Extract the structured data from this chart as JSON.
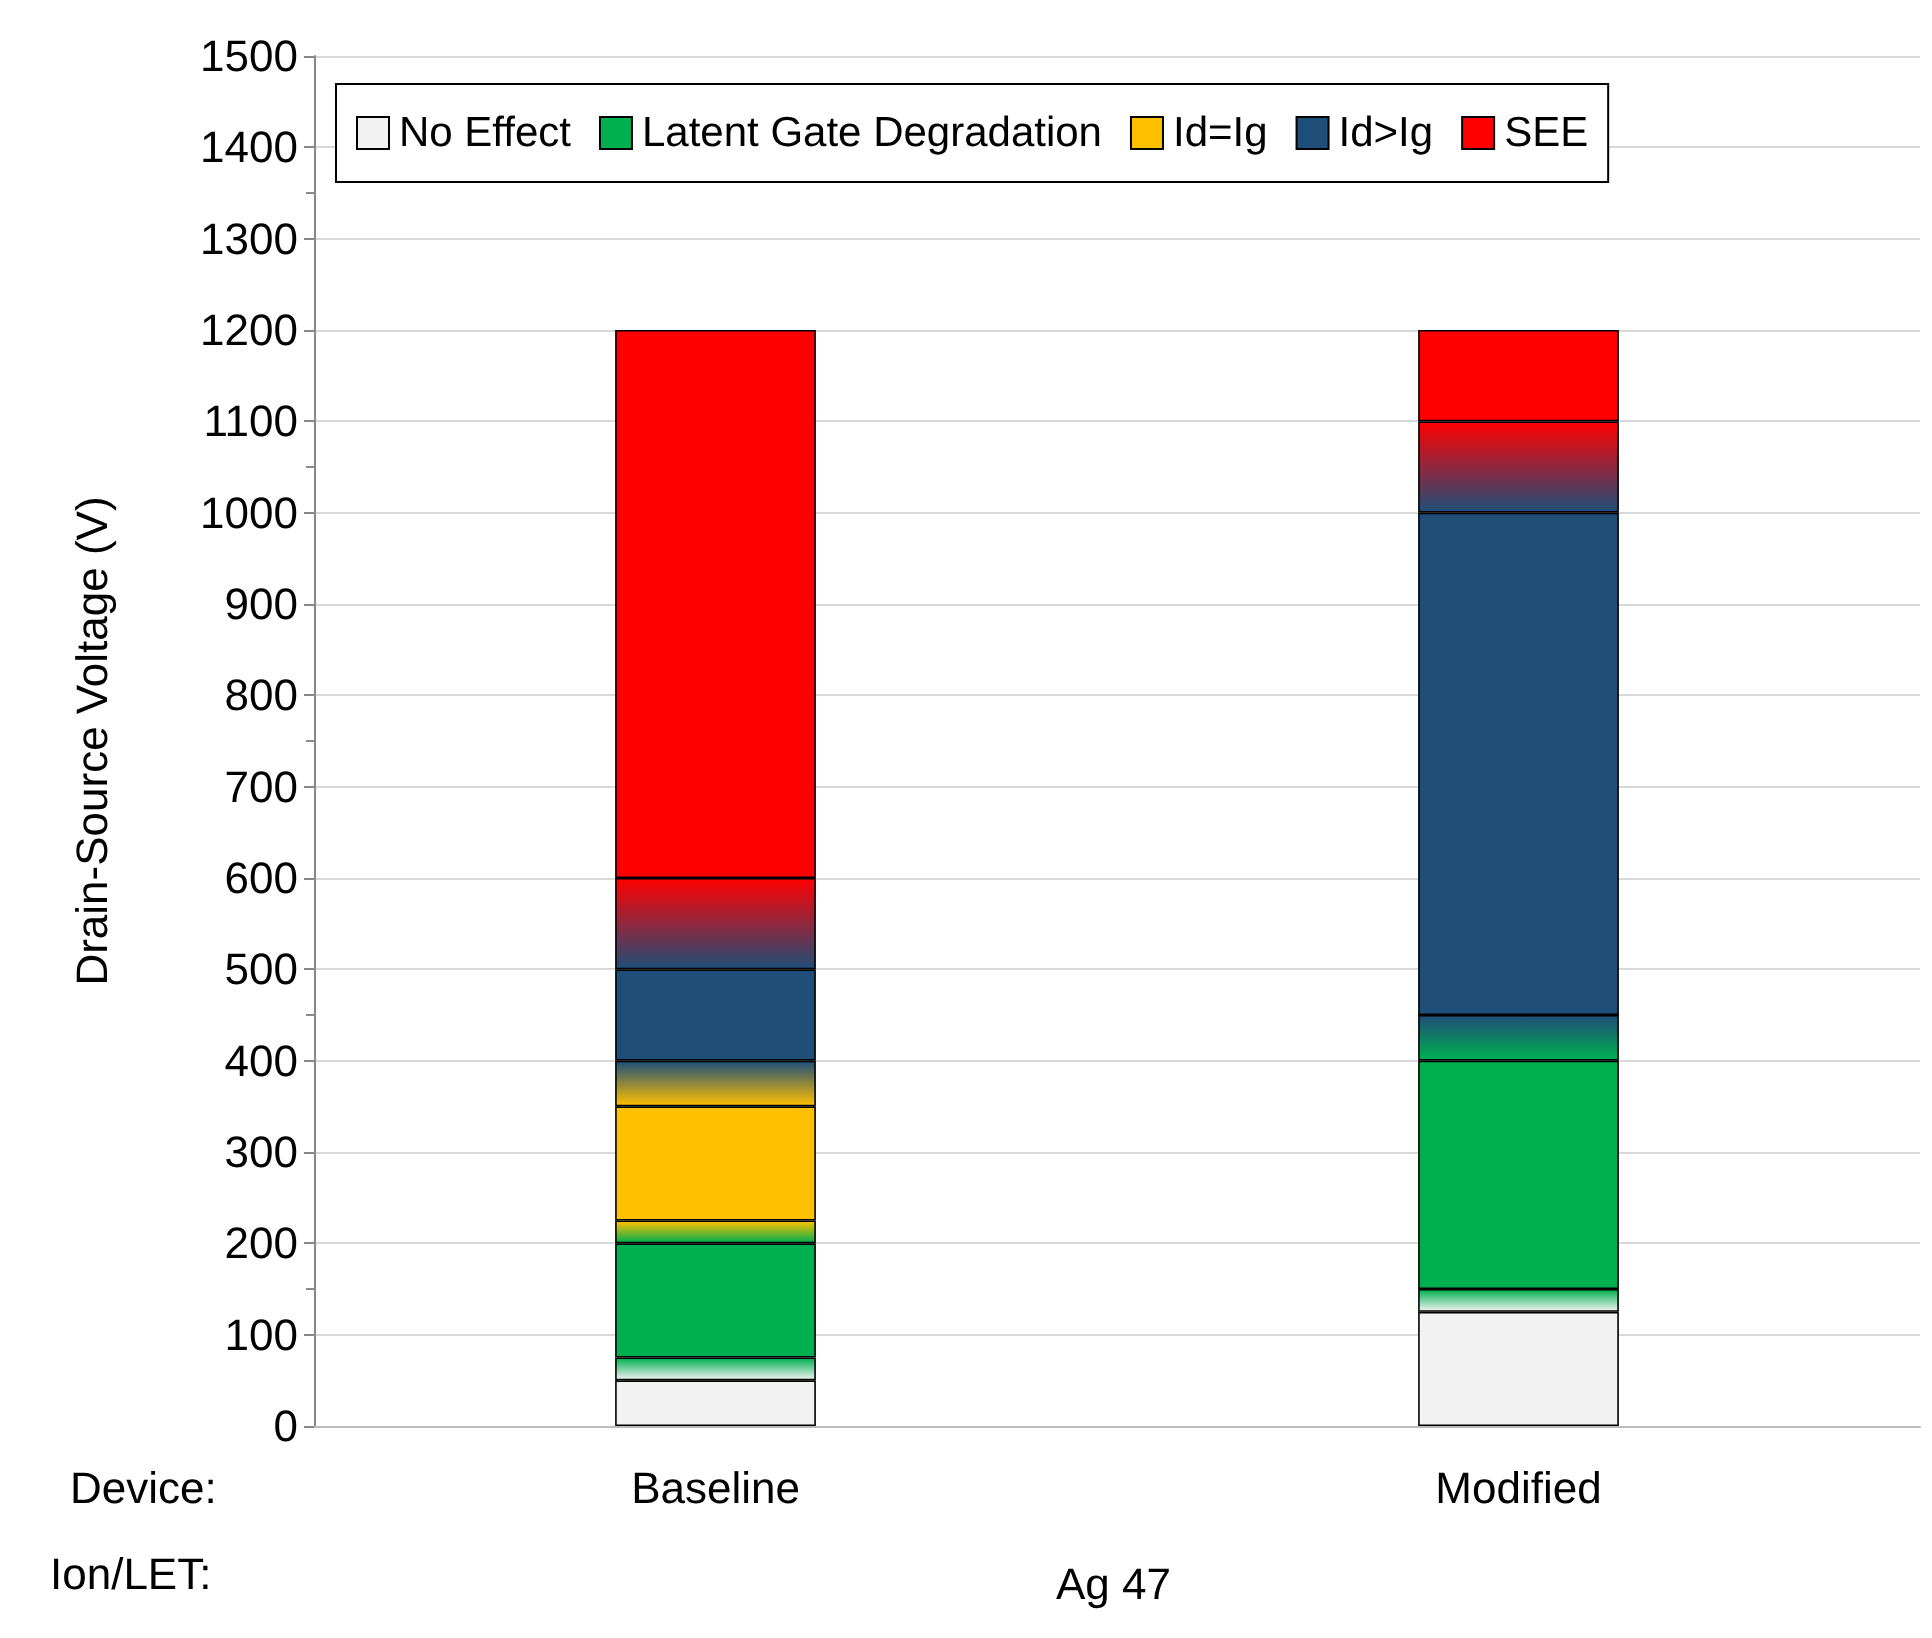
{
  "chart_data": {
    "type": "bar",
    "stacked": true,
    "ylabel": "Drain-Source Voltage (V)",
    "categories": [
      "Baseline",
      "Modified"
    ],
    "series": [
      {
        "name": "No Effect",
        "color": "#f2f2f2",
        "values": [
          50,
          125
        ]
      },
      {
        "values": [
          25,
          25
        ]
      },
      {
        "name": "Latent Gate Degradation",
        "color": "#00b050",
        "values": [
          125,
          250
        ]
      },
      {
        "values": [
          25,
          50
        ]
      },
      {
        "name": "Id=Ig",
        "color": "#ffc000",
        "values": [
          125,
          0
        ]
      },
      {
        "values": [
          50,
          0
        ]
      },
      {
        "name": "Id>Ig",
        "color": "#1f4e79",
        "values": [
          100,
          550
        ]
      },
      {
        "values": [
          100,
          100
        ]
      },
      {
        "name": "SEE",
        "color": "#ff0000",
        "values": [
          600,
          100
        ]
      }
    ],
    "ylim": [
      0,
      1500
    ],
    "yticks": [
      0,
      100,
      200,
      300,
      400,
      500,
      600,
      700,
      800,
      900,
      1000,
      1100,
      1200,
      1300,
      1400,
      1500
    ],
    "grid": "y",
    "legend": "top",
    "annotations": [
      "Device:",
      "Ion/LET:",
      "Ag 47"
    ]
  }
}
